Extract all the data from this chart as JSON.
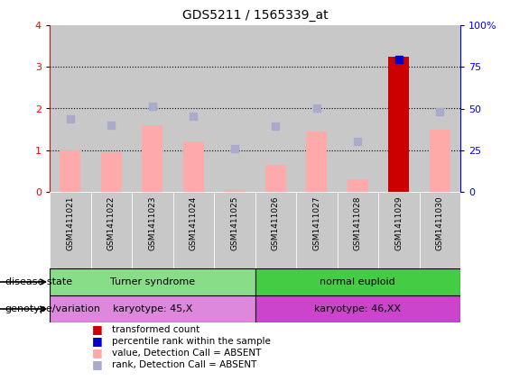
{
  "title": "GDS5211 / 1565339_at",
  "samples": [
    "GSM1411021",
    "GSM1411022",
    "GSM1411023",
    "GSM1411024",
    "GSM1411025",
    "GSM1411026",
    "GSM1411027",
    "GSM1411028",
    "GSM1411029",
    "GSM1411030"
  ],
  "bar_values_pink": [
    1.0,
    0.95,
    1.6,
    1.2,
    0.05,
    0.65,
    1.45,
    0.3,
    3.25,
    1.5
  ],
  "bar_colors": [
    "#ffaaaa",
    "#ffaaaa",
    "#ffaaaa",
    "#ffaaaa",
    "#ffaaaa",
    "#ffaaaa",
    "#ffaaaa",
    "#ffaaaa",
    "#cc0000",
    "#ffaaaa"
  ],
  "rank_dots": [
    1.75,
    1.6,
    2.05,
    1.82,
    1.03,
    1.58,
    2.02,
    1.2,
    3.18,
    1.92
  ],
  "rank_dot_colors": [
    "#aaaacc",
    "#aaaacc",
    "#aaaacc",
    "#aaaacc",
    "#aaaacc",
    "#aaaacc",
    "#aaaacc",
    "#aaaacc",
    "#0000cc",
    "#aaaacc"
  ],
  "ylim_left": [
    0,
    4
  ],
  "ylim_right": [
    0,
    100
  ],
  "yticks_left": [
    0,
    1,
    2,
    3,
    4
  ],
  "yticks_right": [
    0,
    25,
    50,
    75,
    100
  ],
  "ytick_labels_right": [
    "0",
    "25",
    "50",
    "75",
    "100%"
  ],
  "disease_state_groups": [
    {
      "label": "Turner syndrome",
      "start": 0,
      "end": 4,
      "color": "#88dd88"
    },
    {
      "label": "normal euploid",
      "start": 5,
      "end": 9,
      "color": "#44cc44"
    }
  ],
  "genotype_groups": [
    {
      "label": "karyotype: 45,X",
      "start": 0,
      "end": 4,
      "color": "#dd88dd"
    },
    {
      "label": "karyotype: 46,XX",
      "start": 5,
      "end": 9,
      "color": "#cc44cc"
    }
  ],
  "legend_items": [
    {
      "label": "transformed count",
      "color": "#cc0000"
    },
    {
      "label": "percentile rank within the sample",
      "color": "#0000cc"
    },
    {
      "label": "value, Detection Call = ABSENT",
      "color": "#ffaaaa"
    },
    {
      "label": "rank, Detection Call = ABSENT",
      "color": "#aaaacc"
    }
  ],
  "disease_state_label": "disease state",
  "genotype_label": "genotype/variation",
  "col_bg_color": "#c8c8c8",
  "background_color": "#ffffff"
}
